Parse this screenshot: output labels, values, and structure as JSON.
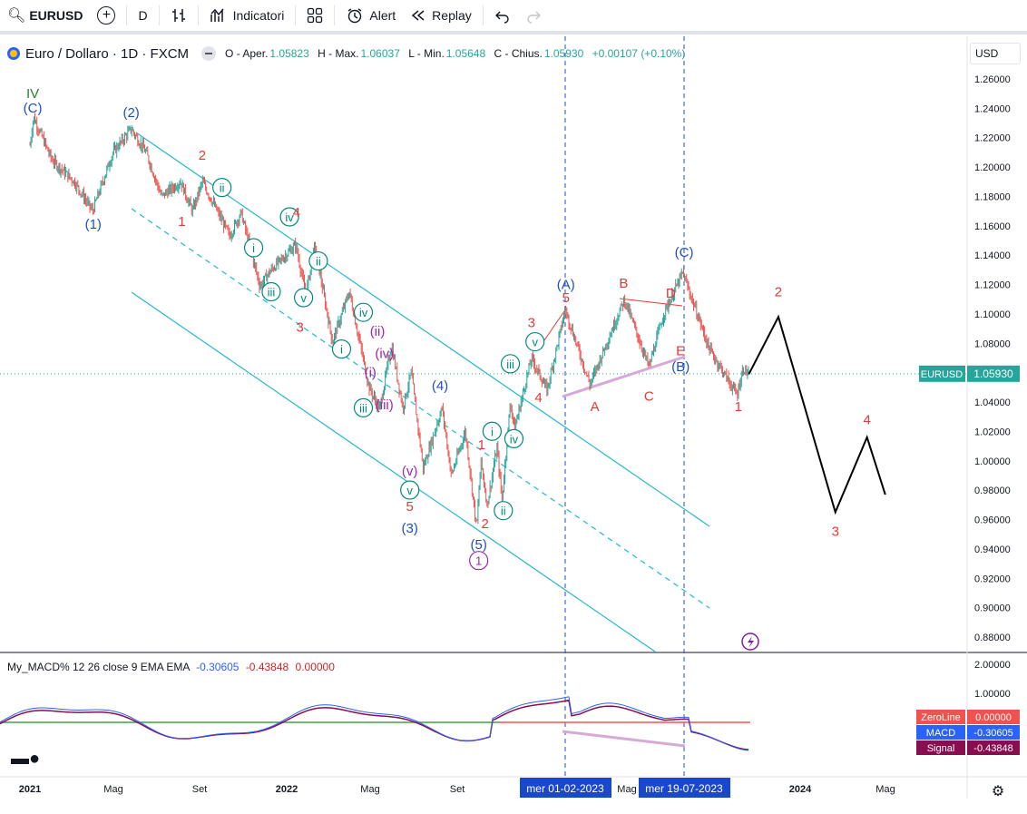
{
  "toolbar": {
    "symbol": "EURUSD",
    "interval": "D",
    "indicators_label": "Indicatori",
    "alert_label": "Alert",
    "replay_label": "Replay"
  },
  "legend": {
    "title": "Euro / Dollaro · 1D · FXCM",
    "open_key": "O - Aper.",
    "open": "1.05823",
    "high_key": "H - Max.",
    "high": "1.06037",
    "low_key": "L - Min.",
    "low": "1.05648",
    "close_key": "C - Chius.",
    "close": "1.05930",
    "change": "+0.00107 (+0.10%)"
  },
  "currency": "USD",
  "price_tag": {
    "symbol": "EURUSD",
    "value": "1.05930"
  },
  "macd": {
    "label": "My_MACD% 12 26 close 9 EMA EMA",
    "v1": "-0.30605",
    "v2": "-0.43848",
    "v3": "0.00000",
    "tags": [
      {
        "name": "ZeroLine",
        "value": "0.00000",
        "color": "#ef5350"
      },
      {
        "name": "MACD",
        "value": "-0.30605",
        "color": "#2962ff"
      },
      {
        "name": "Signal",
        "value": "-0.43848",
        "color": "#880e4f"
      }
    ]
  },
  "date_markers": [
    "mer 01-02-2023",
    "mer 19-07-2023"
  ],
  "chart_data": {
    "type": "line",
    "symbol": "EURUSD",
    "x_ticks": [
      "2021",
      "Mag",
      "Set",
      "2022",
      "Mag",
      "Set",
      "Mag",
      "2024",
      "Mag"
    ],
    "y_ticks": [
      "1.26000",
      "1.24000",
      "1.22000",
      "1.20000",
      "1.18000",
      "1.16000",
      "1.14000",
      "1.12000",
      "1.10000",
      "1.08000",
      "1.06000",
      "1.04000",
      "1.02000",
      "1.00000",
      "0.98000",
      "0.96000",
      "0.94000",
      "0.92000",
      "0.90000",
      "0.88000"
    ],
    "ylim": [
      0.87,
      1.27
    ],
    "macd_y_ticks": [
      "2.00000",
      "1.00000"
    ],
    "price_path": [
      [
        "2021-01-01",
        1.215
      ],
      [
        "2021-01-06",
        1.234
      ],
      [
        "2021-02-01",
        1.205
      ],
      [
        "2021-03-05",
        1.19
      ],
      [
        "2021-03-31",
        1.17
      ],
      [
        "2021-04-29",
        1.21
      ],
      [
        "2021-05-25",
        1.226
      ],
      [
        "2021-06-15",
        1.21
      ],
      [
        "2021-07-07",
        1.18
      ],
      [
        "2021-08-03",
        1.19
      ],
      [
        "2021-08-20",
        1.17
      ],
      [
        "2021-09-03",
        1.19
      ],
      [
        "2021-10-12",
        1.153
      ],
      [
        "2021-10-28",
        1.169
      ],
      [
        "2021-11-24",
        1.119
      ],
      [
        "2021-12-10",
        1.13
      ],
      [
        "2022-01-14",
        1.147
      ],
      [
        "2022-01-28",
        1.113
      ],
      [
        "2022-02-10",
        1.146
      ],
      [
        "2022-03-07",
        1.081
      ],
      [
        "2022-03-31",
        1.115
      ],
      [
        "2022-04-28",
        1.05
      ],
      [
        "2022-05-13",
        1.035
      ],
      [
        "2022-05-30",
        1.079
      ],
      [
        "2022-06-15",
        1.036
      ],
      [
        "2022-06-27",
        1.06
      ],
      [
        "2022-07-14",
        0.995
      ],
      [
        "2022-08-10",
        1.036
      ],
      [
        "2022-08-23",
        0.99
      ],
      [
        "2022-09-12",
        1.02
      ],
      [
        "2022-09-28",
        0.954
      ],
      [
        "2022-10-04",
        1.0
      ],
      [
        "2022-10-13",
        0.97
      ],
      [
        "2022-10-27",
        1.009
      ],
      [
        "2022-11-03",
        0.973
      ],
      [
        "2022-11-15",
        1.04
      ],
      [
        "2022-11-21",
        1.022
      ],
      [
        "2022-12-15",
        1.07
      ],
      [
        "2023-01-06",
        1.048
      ],
      [
        "2023-02-01",
        1.103
      ],
      [
        "2023-03-08",
        1.052
      ],
      [
        "2023-04-26",
        1.11
      ],
      [
        "2023-05-31",
        1.064
      ],
      [
        "2023-06-21",
        1.1
      ],
      [
        "2023-07-18",
        1.128
      ],
      [
        "2023-08-25",
        1.076
      ],
      [
        "2023-10-03",
        1.045
      ],
      [
        "2023-10-12",
        1.063
      ],
      [
        "2023-10-20",
        1.059
      ]
    ],
    "projection": [
      [
        "2023-10-20",
        1.059
      ],
      [
        "2023-12-01",
        1.098
      ],
      [
        "2024-02-20",
        0.965
      ],
      [
        "2024-04-05",
        1.016
      ],
      [
        "2024-05-01",
        0.977
      ]
    ],
    "markers": [
      {
        "text": "IV",
        "x": "2021-01-05",
        "y": 1.247,
        "color": "#2e7d32",
        "circle": false
      },
      {
        "text": "(C)",
        "x": "2021-01-05",
        "y": 1.237,
        "color": "#1e4fc2",
        "circle": false
      },
      {
        "text": "(1)",
        "x": "2021-04-01",
        "y": 1.158,
        "color": "#1e4fc2",
        "circle": false
      },
      {
        "text": "(2)",
        "x": "2021-05-25",
        "y": 1.234,
        "color": "#1e4fc2",
        "circle": false
      },
      {
        "text": "2",
        "x": "2021-09-03",
        "y": 1.205,
        "color": "#e53935",
        "circle": false
      },
      {
        "text": "1",
        "x": "2021-08-05",
        "y": 1.16,
        "color": "#e53935",
        "circle": false
      },
      {
        "text": "ii",
        "x": "2021-10-01",
        "y": 1.183,
        "color": "#00897b",
        "circle": true
      },
      {
        "text": "iv",
        "x": "2022-01-05",
        "y": 1.163,
        "color": "#00897b",
        "circle": true
      },
      {
        "text": "4",
        "x": "2022-01-15",
        "y": 1.166,
        "color": "#e53935",
        "circle": false
      },
      {
        "text": "i",
        "x": "2021-11-15",
        "y": 1.142,
        "color": "#00897b",
        "circle": true
      },
      {
        "text": "ii",
        "x": "2022-02-15",
        "y": 1.133,
        "color": "#00897b",
        "circle": true
      },
      {
        "text": "iii",
        "x": "2021-12-10",
        "y": 1.112,
        "color": "#00897b",
        "circle": true
      },
      {
        "text": "v",
        "x": "2022-01-25",
        "y": 1.108,
        "color": "#00897b",
        "circle": true
      },
      {
        "text": "3",
        "x": "2022-01-20",
        "y": 1.088,
        "color": "#e53935",
        "circle": false
      },
      {
        "text": "i",
        "x": "2022-03-20",
        "y": 1.073,
        "color": "#00897b",
        "circle": true
      },
      {
        "text": "iv",
        "x": "2022-04-20",
        "y": 1.098,
        "color": "#00897b",
        "circle": true
      },
      {
        "text": "(ii)",
        "x": "2022-05-10",
        "y": 1.085,
        "color": "#9c27b0",
        "circle": false
      },
      {
        "text": "(iv)",
        "x": "2022-05-20",
        "y": 1.07,
        "color": "#9c27b0",
        "circle": false
      },
      {
        "text": "(i)",
        "x": "2022-04-30",
        "y": 1.057,
        "color": "#9c27b0",
        "circle": false
      },
      {
        "text": "(iii)",
        "x": "2022-05-20",
        "y": 1.035,
        "color": "#9c27b0",
        "circle": false
      },
      {
        "text": "iii",
        "x": "2022-04-20",
        "y": 1.033,
        "color": "#00897b",
        "circle": true
      },
      {
        "text": "(4)",
        "x": "2022-08-07",
        "y": 1.048,
        "color": "#1e4fc2",
        "circle": false
      },
      {
        "text": "(v)",
        "x": "2022-06-25",
        "y": 0.99,
        "color": "#9c27b0",
        "circle": false
      },
      {
        "text": "v",
        "x": "2022-06-25",
        "y": 0.977,
        "color": "#00897b",
        "circle": true
      },
      {
        "text": "5",
        "x": "2022-06-25",
        "y": 0.966,
        "color": "#e53935",
        "circle": false
      },
      {
        "text": "(3)",
        "x": "2022-06-25",
        "y": 0.951,
        "color": "#1e4fc2",
        "circle": false
      },
      {
        "text": "(5)",
        "x": "2022-10-01",
        "y": 0.94,
        "color": "#1e4fc2",
        "circle": false
      },
      {
        "text": "1",
        "x": "2022-10-01",
        "y": 0.929,
        "color": "#9c27b0",
        "circle": true
      },
      {
        "text": "2",
        "x": "2022-10-10",
        "y": 0.954,
        "color": "#e53935",
        "circle": false
      },
      {
        "text": "1",
        "x": "2022-10-05",
        "y": 1.008,
        "color": "#e53935",
        "circle": false
      },
      {
        "text": "i",
        "x": "2022-10-20",
        "y": 1.017,
        "color": "#00897b",
        "circle": true
      },
      {
        "text": "ii",
        "x": "2022-11-05",
        "y": 0.963,
        "color": "#00897b",
        "circle": true
      },
      {
        "text": "iv",
        "x": "2022-11-20",
        "y": 1.012,
        "color": "#00897b",
        "circle": true
      },
      {
        "text": "iii",
        "x": "2022-11-15",
        "y": 1.063,
        "color": "#00897b",
        "circle": true
      },
      {
        "text": "v",
        "x": "2022-12-20",
        "y": 1.078,
        "color": "#00897b",
        "circle": true
      },
      {
        "text": "3",
        "x": "2022-12-15",
        "y": 1.091,
        "color": "#e53935",
        "circle": false
      },
      {
        "text": "4",
        "x": "2022-12-25",
        "y": 1.04,
        "color": "#e53935",
        "circle": false
      },
      {
        "text": "5",
        "x": "2023-02-02",
        "y": 1.108,
        "color": "#e53935",
        "circle": false
      },
      {
        "text": "(A)",
        "x": "2023-02-02",
        "y": 1.117,
        "color": "#1e4fc2",
        "circle": false
      },
      {
        "text": "A",
        "x": "2023-03-15",
        "y": 1.034,
        "color": "#e53935",
        "circle": false
      },
      {
        "text": "B",
        "x": "2023-04-25",
        "y": 1.118,
        "color": "#e53935",
        "circle": false
      },
      {
        "text": "C",
        "x": "2023-05-31",
        "y": 1.041,
        "color": "#e53935",
        "circle": false
      },
      {
        "text": "D",
        "x": "2023-07-01",
        "y": 1.111,
        "color": "#e53935",
        "circle": false
      },
      {
        "text": "E",
        "x": "2023-07-15",
        "y": 1.072,
        "color": "#e53935",
        "circle": false
      },
      {
        "text": "(B)",
        "x": "2023-07-15",
        "y": 1.061,
        "color": "#1e4fc2",
        "circle": false
      },
      {
        "text": "(C)",
        "x": "2023-07-20",
        "y": 1.139,
        "color": "#1e4fc2",
        "circle": false
      },
      {
        "text": "1",
        "x": "2023-10-05",
        "y": 1.034,
        "color": "#e53935",
        "circle": false
      },
      {
        "text": "2",
        "x": "2023-12-01",
        "y": 1.112,
        "color": "#e53935",
        "circle": false
      },
      {
        "text": "3",
        "x": "2024-02-20",
        "y": 0.949,
        "color": "#e53935",
        "circle": false
      },
      {
        "text": "4",
        "x": "2024-04-05",
        "y": 1.025,
        "color": "#e53935",
        "circle": false
      }
    ]
  }
}
